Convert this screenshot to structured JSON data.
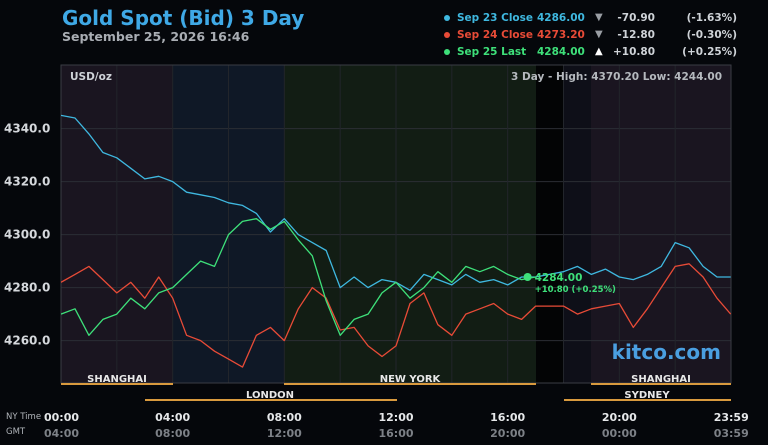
{
  "header": {
    "title": "Gold Spot (Bid) 3 Day",
    "subtitle": "September 25, 2026 16:46"
  },
  "legend": [
    {
      "label": "Sep 23 Close",
      "value": "4286.00",
      "arrow": "▼",
      "change": "-70.90",
      "pct": "(-1.63%)",
      "color": "#3fb8e0"
    },
    {
      "label": "Sep 24 Close",
      "value": "4273.20",
      "arrow": "▼",
      "change": "-12.80",
      "pct": "(-0.30%)",
      "color": "#e84b37"
    },
    {
      "label": "Sep 25 Last",
      "value": "4284.00",
      "arrow": "▲",
      "change": "+10.80",
      "pct": "(+0.25%)",
      "color": "#3ee07a"
    }
  ],
  "plot": {
    "unit_label": "USD/oz",
    "range_label": "3 Day - High: 4370.20  Low: 4244.00",
    "watermark": "kitco.com",
    "last_price_label": "4284.00",
    "last_change_label": "+10.80 (+0.25%)"
  },
  "sessions_row1": [
    {
      "name": "SHANGHAI"
    },
    {
      "name": "NEW YORK"
    },
    {
      "name": "SHANGHAI"
    }
  ],
  "sessions_row2": [
    {
      "name": "LONDON"
    },
    {
      "name": "SYDNEY"
    }
  ],
  "time_axis": {
    "row1_label": "NY Time",
    "row2_label": "GMT",
    "ny": [
      "00:00",
      "04:00",
      "08:00",
      "12:00",
      "16:00",
      "20:00",
      "23:59"
    ],
    "gmt": [
      "04:00",
      "08:00",
      "12:00",
      "16:00",
      "20:00",
      "00:00",
      "03:59"
    ]
  },
  "chart_data": {
    "type": "line",
    "ylabel": "USD/oz",
    "ylim": [
      4244,
      4364
    ],
    "y_ticks": [
      "4340.0",
      "4320.0",
      "4300.0",
      "4280.0",
      "4260.0"
    ],
    "y_tick_values": [
      4340,
      4320,
      4300,
      4280,
      4260
    ],
    "x_unit": "hours (NY Time)",
    "xlim": [
      0,
      24
    ],
    "series": [
      {
        "name": "Sep 23 Close",
        "color": "#3fb8e0",
        "x": [
          0,
          0.5,
          1,
          1.5,
          2,
          2.5,
          3,
          3.5,
          4,
          4.5,
          5,
          5.5,
          6,
          6.5,
          7,
          7.5,
          8,
          8.5,
          9,
          9.5,
          10,
          10.5,
          11,
          11.5,
          12,
          12.5,
          13,
          13.5,
          14,
          14.5,
          15,
          15.5,
          16,
          16.5,
          17,
          18,
          18.5,
          19,
          19.5,
          20,
          20.5,
          21,
          21.5,
          22,
          22.5,
          23,
          23.5,
          23.99
        ],
        "y": [
          4345,
          4344,
          4338,
          4331,
          4329,
          4325,
          4321,
          4322,
          4320,
          4316,
          4315,
          4314,
          4312,
          4311,
          4308,
          4301,
          4306,
          4300,
          4297,
          4294,
          4280,
          4284,
          4280,
          4283,
          4282,
          4279,
          4285,
          4283,
          4281,
          4285,
          4282,
          4283,
          4281,
          4284,
          4284,
          4286,
          4288,
          4285,
          4287,
          4284,
          4283,
          4285,
          4288,
          4297,
          4295,
          4288,
          4284,
          4284
        ]
      },
      {
        "name": "Sep 24 Close",
        "color": "#e84b37",
        "x": [
          0,
          0.5,
          1,
          1.5,
          2,
          2.5,
          3,
          3.5,
          4,
          4.5,
          5,
          5.5,
          6,
          6.5,
          7,
          7.5,
          8,
          8.5,
          9,
          9.5,
          10,
          10.5,
          11,
          11.5,
          12,
          12.5,
          13,
          13.5,
          14,
          14.5,
          15,
          15.5,
          16,
          16.5,
          17,
          18,
          18.5,
          19,
          19.5,
          20,
          20.5,
          21,
          21.5,
          22,
          22.5,
          23,
          23.5,
          23.99
        ],
        "y": [
          4282,
          4285,
          4288,
          4283,
          4278,
          4282,
          4276,
          4284,
          4276,
          4262,
          4260,
          4256,
          4253,
          4250,
          4262,
          4265,
          4260,
          4272,
          4280,
          4276,
          4264,
          4265,
          4258,
          4254,
          4258,
          4274,
          4278,
          4266,
          4262,
          4270,
          4272,
          4274,
          4270,
          4268,
          4273,
          4273,
          4270,
          4272,
          4273,
          4274,
          4265,
          4272,
          4280,
          4288,
          4289,
          4284,
          4276,
          4270
        ]
      },
      {
        "name": "Sep 25 Last",
        "color": "#3ee07a",
        "x": [
          0,
          0.5,
          1,
          1.5,
          2,
          2.5,
          3,
          3.5,
          4,
          4.5,
          5,
          5.5,
          6,
          6.5,
          7,
          7.5,
          8,
          8.5,
          9,
          9.5,
          10,
          10.5,
          11,
          11.5,
          12,
          12.5,
          13,
          13.5,
          14,
          14.5,
          15,
          15.5,
          16,
          16.5,
          17
        ],
        "y": [
          4270,
          4272,
          4262,
          4268,
          4270,
          4276,
          4272,
          4278,
          4280,
          4285,
          4290,
          4288,
          4300,
          4305,
          4306,
          4302,
          4305,
          4298,
          4292,
          4275,
          4262,
          4268,
          4270,
          4278,
          4282,
          4276,
          4280,
          4286,
          4282,
          4288,
          4286,
          4288,
          4285,
          4283,
          4284
        ]
      }
    ]
  }
}
